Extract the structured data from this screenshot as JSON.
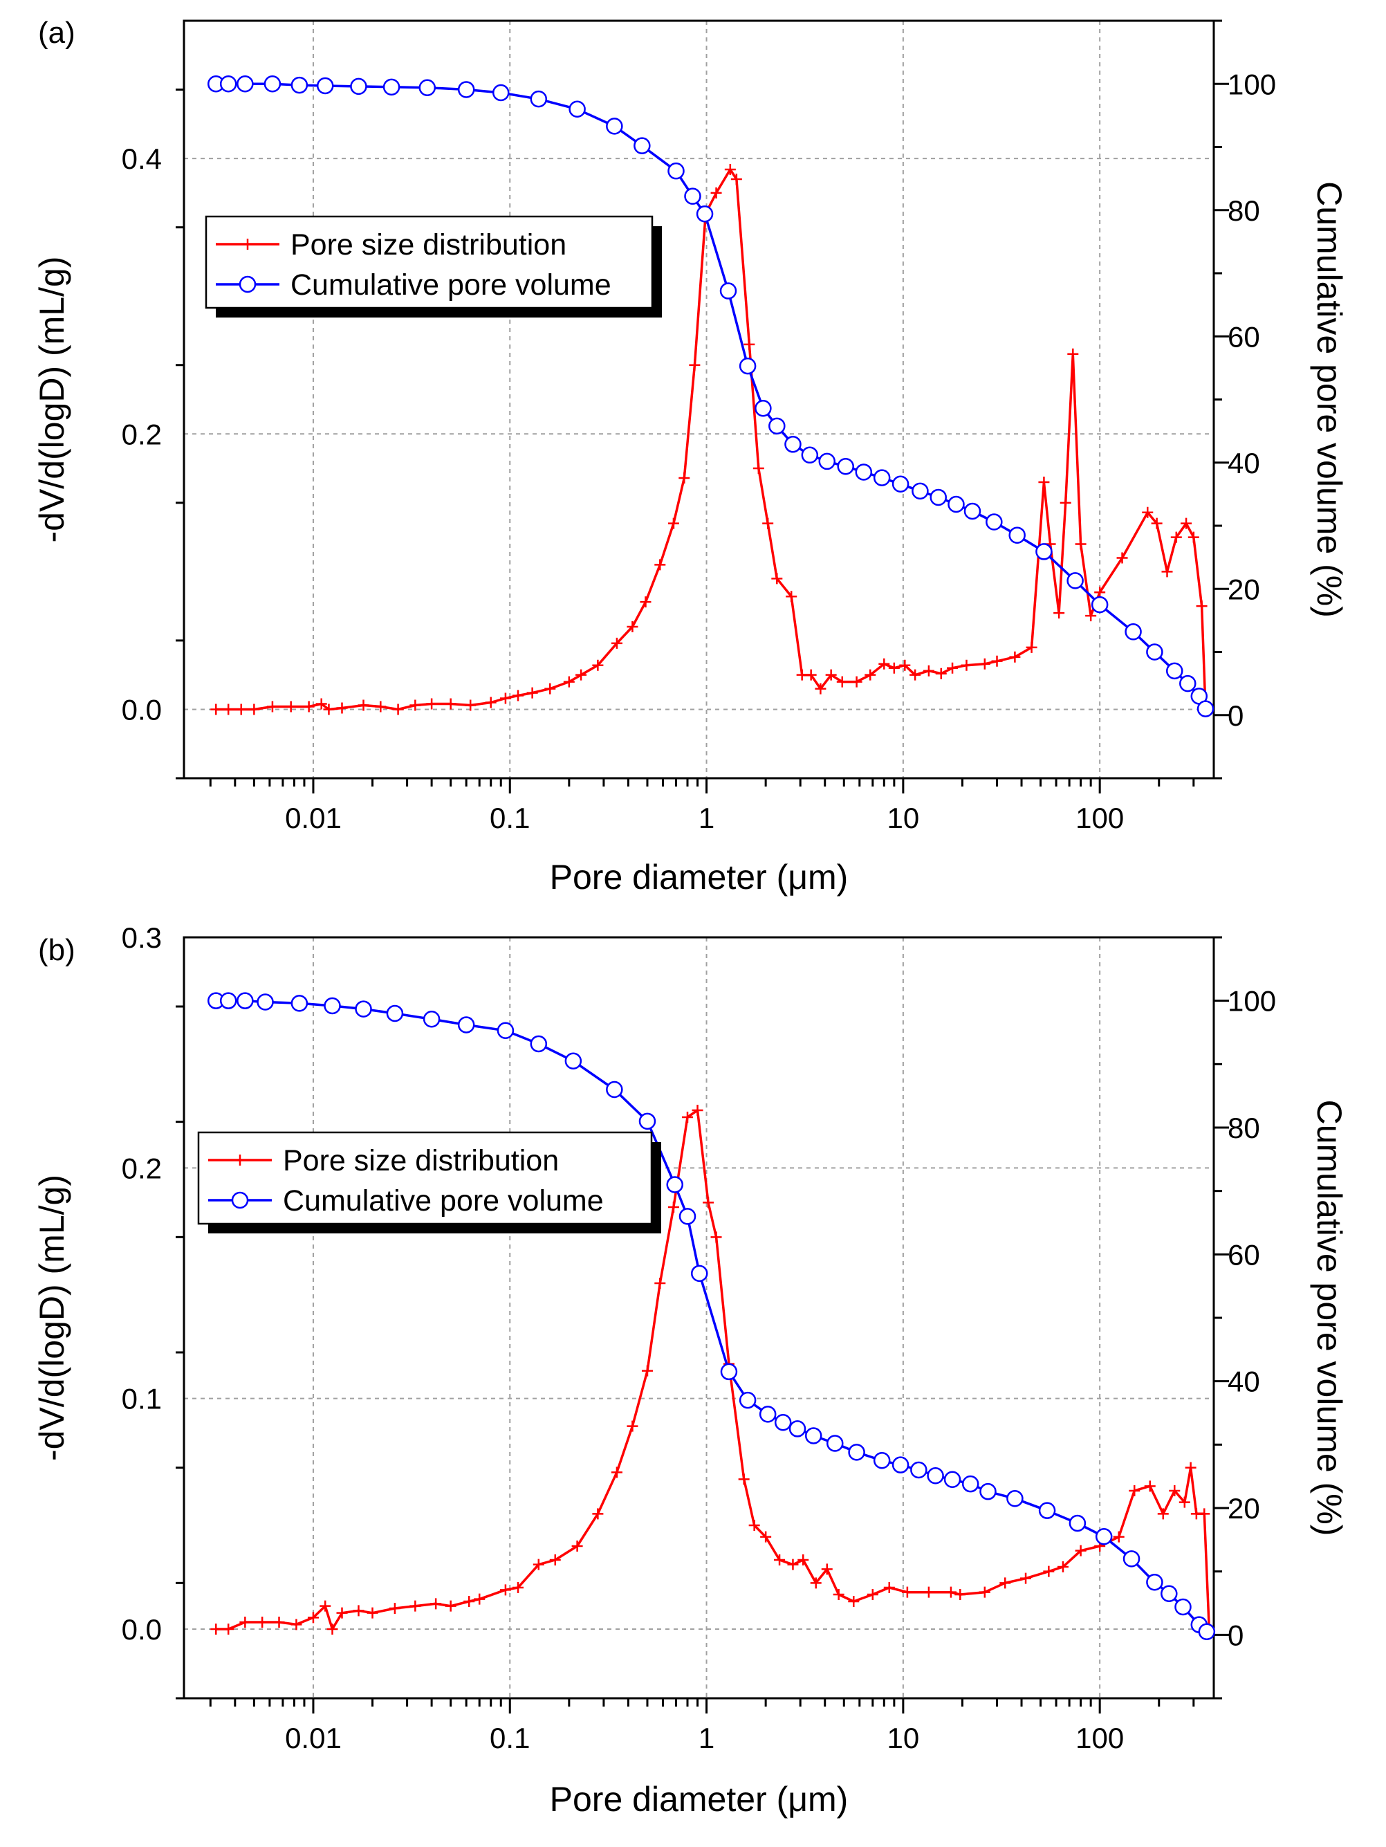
{
  "figure": {
    "xlabel": "Pore diameter (μm)",
    "colors": {
      "psd": "#ff0000",
      "cumulative": "#0000ff",
      "marker_fill": "#ffffff",
      "grid": "#a0a0a0",
      "axis": "#000000"
    }
  },
  "chart_data": [
    {
      "type": "line",
      "panel_label": "(a)",
      "xlabel": "Pore diameter (μm)",
      "ylabel_left": "-dV/d(logD) (mL/g)",
      "ylabel_right": "Cumulative pore volume (%)",
      "x_scale": "log",
      "xlim": [
        0.0022,
        380
      ],
      "ylim_left": [
        -0.05,
        0.5
      ],
      "ylim_right": [
        -10,
        110
      ],
      "x_ticks": [
        0.01,
        0.1,
        1,
        10,
        100
      ],
      "x_tick_labels": [
        "0.01",
        "0.1",
        "1",
        "10",
        "100"
      ],
      "y_ticks_left": [
        0.0,
        0.2,
        0.4
      ],
      "y_tick_labels_left": [
        "0.0",
        "0.2",
        "0.4"
      ],
      "y_ticks_right": [
        0,
        20,
        40,
        60,
        80,
        100
      ],
      "y_tick_labels_right": [
        "0",
        "20",
        "40",
        "60",
        "80",
        "100"
      ],
      "grid": true,
      "legend": {
        "position": "upper-left",
        "entries": [
          "Pore size distribution",
          "Cumulative pore volume"
        ]
      },
      "series": [
        {
          "name": "Pore size distribution",
          "axis": "left",
          "marker": "plus",
          "x": [
            0.0032,
            0.0037,
            0.0043,
            0.005,
            0.0062,
            0.0077,
            0.0095,
            0.011,
            0.012,
            0.014,
            0.018,
            0.022,
            0.027,
            0.033,
            0.04,
            0.05,
            0.063,
            0.08,
            0.095,
            0.11,
            0.13,
            0.16,
            0.2,
            0.23,
            0.28,
            0.35,
            0.42,
            0.49,
            0.58,
            0.68,
            0.77,
            0.87,
            0.99,
            1.12,
            1.32,
            1.42,
            1.65,
            1.84,
            2.05,
            2.28,
            2.7,
            3.06,
            3.4,
            3.8,
            4.3,
            4.9,
            5.8,
            6.8,
            8.0,
            9.0,
            10.2,
            11.5,
            13.5,
            15.6,
            17.8,
            21,
            26,
            30,
            37,
            45,
            52,
            56,
            62,
            67,
            73,
            80,
            90,
            100,
            130,
            175,
            195,
            220,
            245,
            275,
            300,
            330,
            345
          ],
          "values": [
            0.0,
            0.0,
            0.0,
            0.0,
            0.002,
            0.002,
            0.002,
            0.004,
            0.0,
            0.001,
            0.003,
            0.002,
            0.0,
            0.003,
            0.004,
            0.004,
            0.003,
            0.005,
            0.008,
            0.01,
            0.012,
            0.015,
            0.02,
            0.025,
            0.032,
            0.048,
            0.06,
            0.078,
            0.105,
            0.135,
            0.168,
            0.25,
            0.36,
            0.375,
            0.392,
            0.385,
            0.265,
            0.175,
            0.135,
            0.095,
            0.082,
            0.025,
            0.025,
            0.015,
            0.025,
            0.02,
            0.02,
            0.025,
            0.033,
            0.03,
            0.032,
            0.025,
            0.028,
            0.026,
            0.03,
            0.032,
            0.033,
            0.035,
            0.038,
            0.045,
            0.165,
            0.12,
            0.07,
            0.15,
            0.258,
            0.12,
            0.068,
            0.085,
            0.11,
            0.143,
            0.135,
            0.1,
            0.125,
            0.135,
            0.125,
            0.075,
            0.0
          ]
        },
        {
          "name": "Cumulative pore volume",
          "axis": "right",
          "marker": "circle",
          "x": [
            0.0032,
            0.0037,
            0.0045,
            0.0062,
            0.0085,
            0.0115,
            0.017,
            0.025,
            0.038,
            0.06,
            0.09,
            0.14,
            0.22,
            0.34,
            0.47,
            0.7,
            0.85,
            0.98,
            1.29,
            1.62,
            1.94,
            2.28,
            2.75,
            3.35,
            4.1,
            5.1,
            6.3,
            7.8,
            9.7,
            12.2,
            15.1,
            18.6,
            22.5,
            29,
            38,
            52,
            75,
            100,
            148,
            190,
            240,
            280,
            320,
            345
          ],
          "values": [
            100,
            100,
            100,
            100,
            99.8,
            99.7,
            99.6,
            99.5,
            99.4,
            99.1,
            98.6,
            97.6,
            96,
            93.3,
            90.2,
            86.2,
            82.2,
            79.4,
            67.2,
            55.3,
            48.6,
            45.8,
            42.9,
            41.2,
            40.2,
            39.4,
            38.5,
            37.6,
            36.6,
            35.5,
            34.5,
            33.4,
            32.3,
            30.6,
            28.5,
            25.9,
            21.3,
            17.5,
            13.2,
            10,
            7,
            5,
            3,
            1
          ]
        }
      ]
    },
    {
      "type": "line",
      "panel_label": "(b)",
      "xlabel": "Pore diameter (μm)",
      "ylabel_left": "-dV/d(logD) (mL/g)",
      "ylabel_right": "Cumulative pore volume (%)",
      "x_scale": "log",
      "xlim": [
        0.0022,
        380
      ],
      "ylim_left": [
        -0.03,
        0.3
      ],
      "ylim_right": [
        -10,
        110
      ],
      "x_ticks": [
        0.01,
        0.1,
        1,
        10,
        100
      ],
      "x_tick_labels": [
        "0.01",
        "0.1",
        "1",
        "10",
        "100"
      ],
      "y_ticks_left": [
        0.0,
        0.1,
        0.2,
        0.3
      ],
      "y_tick_labels_left": [
        "0.0",
        "0.1",
        "0.2",
        "0.3"
      ],
      "y_ticks_right": [
        0,
        20,
        40,
        60,
        80,
        100
      ],
      "y_tick_labels_right": [
        "0",
        "20",
        "40",
        "60",
        "80",
        "100"
      ],
      "grid": true,
      "legend": {
        "position": "middle-left",
        "entries": [
          "Pore size distribution",
          "Cumulative pore volume"
        ]
      },
      "series": [
        {
          "name": "Pore size distribution",
          "axis": "left",
          "marker": "plus",
          "x": [
            0.0032,
            0.0037,
            0.0045,
            0.0055,
            0.0067,
            0.0082,
            0.01,
            0.0115,
            0.0125,
            0.014,
            0.017,
            0.02,
            0.026,
            0.033,
            0.042,
            0.05,
            0.062,
            0.07,
            0.095,
            0.11,
            0.14,
            0.17,
            0.22,
            0.28,
            0.35,
            0.42,
            0.5,
            0.58,
            0.68,
            0.8,
            0.9,
            1.02,
            1.12,
            1.3,
            1.55,
            1.75,
            2.0,
            2.35,
            2.75,
            3.1,
            3.6,
            4.1,
            4.7,
            5.6,
            7.0,
            8.5,
            10.5,
            13.5,
            17.5,
            19.5,
            26,
            33,
            42,
            55,
            65,
            80,
            100,
            125,
            150,
            180,
            210,
            240,
            270,
            290,
            310,
            340,
            360
          ],
          "values": [
            0.0,
            0.0,
            0.003,
            0.003,
            0.003,
            0.002,
            0.005,
            0.01,
            0.0,
            0.007,
            0.008,
            0.007,
            0.009,
            0.01,
            0.011,
            0.01,
            0.012,
            0.013,
            0.017,
            0.018,
            0.028,
            0.03,
            0.036,
            0.05,
            0.068,
            0.088,
            0.112,
            0.15,
            0.183,
            0.222,
            0.225,
            0.185,
            0.17,
            0.115,
            0.065,
            0.045,
            0.04,
            0.03,
            0.028,
            0.03,
            0.02,
            0.026,
            0.015,
            0.012,
            0.015,
            0.018,
            0.016,
            0.016,
            0.016,
            0.015,
            0.016,
            0.02,
            0.022,
            0.025,
            0.027,
            0.034,
            0.036,
            0.04,
            0.06,
            0.062,
            0.05,
            0.06,
            0.055,
            0.07,
            0.05,
            0.05,
            0.0
          ]
        },
        {
          "name": "Cumulative pore volume",
          "axis": "right",
          "marker": "circle",
          "x": [
            0.0032,
            0.0037,
            0.0045,
            0.0057,
            0.0085,
            0.0125,
            0.018,
            0.026,
            0.04,
            0.06,
            0.095,
            0.14,
            0.21,
            0.34,
            0.5,
            0.69,
            0.8,
            0.92,
            1.3,
            1.62,
            2.05,
            2.45,
            2.9,
            3.5,
            4.5,
            5.8,
            7.8,
            9.7,
            12,
            14.6,
            17.8,
            22,
            27,
            37,
            54,
            77,
            105,
            145,
            190,
            225,
            265,
            320,
            350
          ],
          "values": [
            100,
            100,
            100,
            99.8,
            99.6,
            99.2,
            98.7,
            98,
            97.1,
            96.2,
            95.3,
            93.2,
            90.5,
            86,
            81,
            71,
            66,
            57,
            41.5,
            37,
            34.8,
            33.5,
            32.5,
            31.4,
            30.2,
            28.8,
            27.5,
            26.8,
            26,
            25.1,
            24.5,
            23.8,
            22.6,
            21.5,
            19.6,
            17.6,
            15.5,
            12,
            8.3,
            6.5,
            4.4,
            1.6,
            0.5
          ]
        }
      ]
    }
  ]
}
